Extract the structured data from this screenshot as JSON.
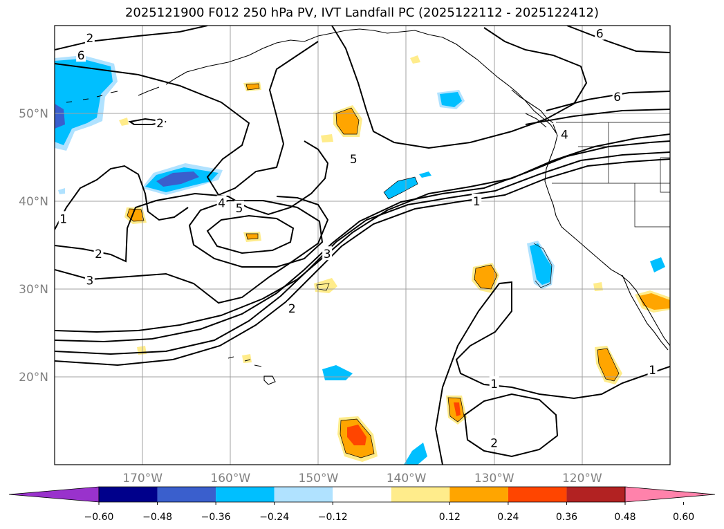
{
  "title": "2025121900 F012 250 hPa PV, IVT Landfall PC (2025122112 - 2025122412)",
  "map": {
    "projection": "equirectangular",
    "lon_range": [
      -180,
      -110
    ],
    "lat_range": [
      10,
      60
    ],
    "gridlines": true,
    "lon_ticks": [
      {
        "lon": -170,
        "label": "170°W"
      },
      {
        "lon": -160,
        "label": "160°W"
      },
      {
        "lon": -150,
        "label": "150°W"
      },
      {
        "lon": -140,
        "label": "140°W"
      },
      {
        "lon": -130,
        "label": "130°W"
      },
      {
        "lon": -120,
        "label": "120°W"
      }
    ],
    "lat_ticks": [
      {
        "lat": 20,
        "label": "20°N"
      },
      {
        "lat": 30,
        "label": "30°N"
      },
      {
        "lat": 40,
        "label": "40°N"
      },
      {
        "lat": 50,
        "label": "50°N"
      }
    ],
    "contour_labels": [
      {
        "text": "2",
        "lon": -176,
        "lat": 58.6
      },
      {
        "text": "2",
        "lon": -168,
        "lat": 48.9
      },
      {
        "text": "6",
        "lon": -177,
        "lat": 56.6
      },
      {
        "text": "1",
        "lon": -179,
        "lat": 38.0
      },
      {
        "text": "2",
        "lon": -175,
        "lat": 34.0
      },
      {
        "text": "3",
        "lon": -176,
        "lat": 31.0
      },
      {
        "text": "4",
        "lon": -161,
        "lat": 39.8
      },
      {
        "text": "5",
        "lon": -159,
        "lat": 39.2
      },
      {
        "text": "3",
        "lon": -149,
        "lat": 34.0
      },
      {
        "text": "2",
        "lon": -153,
        "lat": 27.8
      },
      {
        "text": "5",
        "lon": -146,
        "lat": 44.8
      },
      {
        "text": "1",
        "lon": -132,
        "lat": 40.0
      },
      {
        "text": "6",
        "lon": -116,
        "lat": 51.9
      },
      {
        "text": "6",
        "lon": -118,
        "lat": 59.1
      },
      {
        "text": "4",
        "lon": -122,
        "lat": 47.6
      },
      {
        "text": "1",
        "lon": -130,
        "lat": 19.2
      },
      {
        "text": "2",
        "lon": -130,
        "lat": 12.5
      },
      {
        "text": "1",
        "lon": -112,
        "lat": 20.8
      }
    ]
  },
  "colorbar": {
    "colors": [
      "#9932cc",
      "#00008b",
      "#3a5fcd",
      "#00bfff",
      "#b0e2ff",
      "#ffffff",
      "#ffec8b",
      "#ffa500",
      "#ff4500",
      "#b22222",
      "#ff82ab"
    ],
    "tick_labels": [
      "−0.60",
      "−0.48",
      "−0.36",
      "−0.24",
      "−0.12",
      "0.12",
      "0.24",
      "0.36",
      "0.48",
      "0.60"
    ]
  },
  "colors": {
    "blue_light": "#b0e2ff",
    "blue": "#00bfff",
    "blue_dark": "#3a5fcd",
    "yellow": "#ffec8b",
    "orange": "#ffa500",
    "red": "#ff4500"
  }
}
